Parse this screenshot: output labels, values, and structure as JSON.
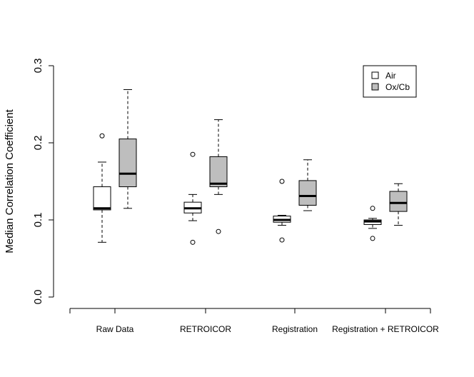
{
  "chart_data": {
    "type": "box",
    "title": "",
    "xlabel": "",
    "ylabel": "Median Correlation Coefficient",
    "ylim": [
      0.0,
      0.3
    ],
    "yticks": [
      0.0,
      0.1,
      0.2,
      0.3
    ],
    "ytick_labels": [
      "0.0",
      "0.1",
      "0.2",
      "0.3"
    ],
    "grid": false,
    "categories": [
      "Raw Data",
      "RETROICOR",
      "Registration",
      "Registration + RETROICOR"
    ],
    "legend": {
      "position": "top-right",
      "entries": [
        {
          "label": "Air",
          "fill": "#ffffff"
        },
        {
          "label": "Ox/Cb",
          "fill": "#bebebe"
        }
      ]
    },
    "series": [
      {
        "name": "Air",
        "fill": "#ffffff",
        "boxes": [
          {
            "category": "Raw Data",
            "whisker_low": 0.071,
            "q1": 0.113,
            "median": 0.115,
            "q3": 0.143,
            "whisker_high": 0.175,
            "outliers": [
              0.209
            ]
          },
          {
            "category": "RETROICOR",
            "whisker_low": 0.099,
            "q1": 0.109,
            "median": 0.115,
            "q3": 0.123,
            "whisker_high": 0.133,
            "outliers": [
              0.185,
              0.071
            ]
          },
          {
            "category": "Registration",
            "whisker_low": 0.093,
            "q1": 0.097,
            "median": 0.1,
            "q3": 0.105,
            "whisker_high": 0.106,
            "outliers": [
              0.15,
              0.074
            ]
          },
          {
            "category": "Registration + RETROICOR",
            "whisker_low": 0.089,
            "q1": 0.094,
            "median": 0.098,
            "q3": 0.1,
            "whisker_high": 0.102,
            "outliers": [
              0.115,
              0.076
            ]
          }
        ]
      },
      {
        "name": "Ox/Cb",
        "fill": "#bebebe",
        "boxes": [
          {
            "category": "Raw Data",
            "whisker_low": 0.115,
            "q1": 0.143,
            "median": 0.16,
            "q3": 0.205,
            "whisker_high": 0.269,
            "outliers": []
          },
          {
            "category": "RETROICOR",
            "whisker_low": 0.133,
            "q1": 0.143,
            "median": 0.147,
            "q3": 0.182,
            "whisker_high": 0.23,
            "outliers": [
              0.085
            ]
          },
          {
            "category": "Registration",
            "whisker_low": 0.112,
            "q1": 0.119,
            "median": 0.131,
            "q3": 0.151,
            "whisker_high": 0.178,
            "outliers": []
          },
          {
            "category": "Registration + RETROICOR",
            "whisker_low": 0.093,
            "q1": 0.111,
            "median": 0.122,
            "q3": 0.137,
            "whisker_high": 0.147,
            "outliers": []
          }
        ]
      }
    ]
  }
}
